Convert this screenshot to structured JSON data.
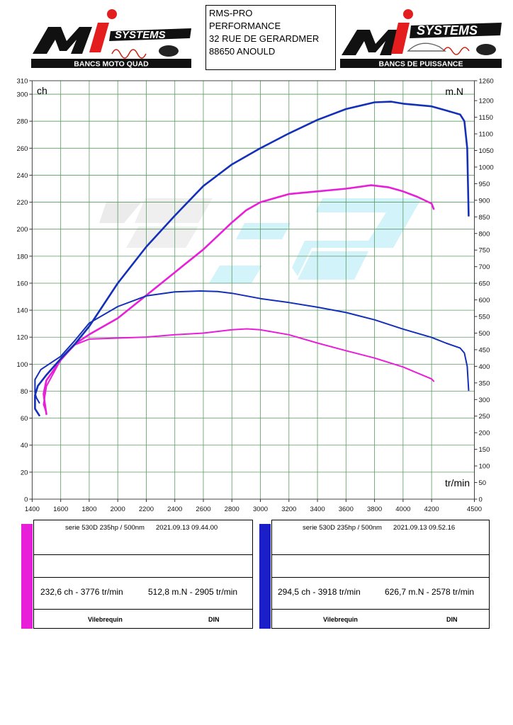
{
  "header": {
    "logo_left": {
      "brand": "MI SYSTEMS",
      "tagline": "BANCS MOTO QUAD"
    },
    "address_lines": [
      "RMS-PRO",
      "PERFORMANCE",
      "32 RUE DE GERARDMER",
      "88650 ANOULD"
    ],
    "logo_right": {
      "brand": "MI SYSTEMS",
      "tagline": "BANCS DE PUISSANCE"
    }
  },
  "chart_data": {
    "type": "line",
    "xlabel": "tr/min",
    "ylabel_left": "ch",
    "ylabel_right": "m.N",
    "xlim": [
      1400,
      4500
    ],
    "ylim_left": [
      0,
      310
    ],
    "ylim_right": [
      0,
      1260
    ],
    "x_ticks": [
      1400,
      1600,
      1800,
      2000,
      2200,
      2400,
      2600,
      2800,
      3000,
      3200,
      3400,
      3600,
      3800,
      4000,
      4200,
      4500
    ],
    "y_ticks_left": [
      0,
      20,
      40,
      60,
      80,
      100,
      120,
      140,
      160,
      180,
      200,
      220,
      240,
      260,
      280,
      300,
      310
    ],
    "y_ticks_right": [
      0,
      50,
      100,
      150,
      200,
      250,
      300,
      350,
      400,
      450,
      500,
      550,
      600,
      650,
      700,
      750,
      800,
      850,
      900,
      950,
      1000,
      1050,
      1100,
      1150,
      1200,
      1260
    ],
    "grid": true,
    "series": [
      {
        "color": "#e81fd8",
        "axis": "left",
        "quantity": "power",
        "points": [
          [
            1500,
            63
          ],
          [
            1490,
            70
          ],
          [
            1480,
            78
          ],
          [
            1500,
            88
          ],
          [
            1600,
            103
          ],
          [
            1700,
            115
          ],
          [
            1800,
            122
          ],
          [
            2000,
            134
          ],
          [
            2200,
            151
          ],
          [
            2400,
            168
          ],
          [
            2600,
            185
          ],
          [
            2800,
            205
          ],
          [
            2900,
            214
          ],
          [
            3000,
            220
          ],
          [
            3200,
            226
          ],
          [
            3400,
            228
          ],
          [
            3600,
            230
          ],
          [
            3776,
            232.6
          ],
          [
            3900,
            231
          ],
          [
            4000,
            228
          ],
          [
            4100,
            224
          ],
          [
            4200,
            219
          ],
          [
            4215,
            215
          ]
        ]
      },
      {
        "color": "#e81fd8",
        "axis": "right",
        "quantity": "torque",
        "points": [
          [
            1500,
            260
          ],
          [
            1480,
            285
          ],
          [
            1500,
            340
          ],
          [
            1600,
            420
          ],
          [
            1700,
            465
          ],
          [
            1800,
            482
          ],
          [
            2000,
            485
          ],
          [
            2200,
            488
          ],
          [
            2400,
            495
          ],
          [
            2600,
            500
          ],
          [
            2800,
            510
          ],
          [
            2905,
            512.8
          ],
          [
            3000,
            510
          ],
          [
            3200,
            495
          ],
          [
            3400,
            470
          ],
          [
            3600,
            447
          ],
          [
            3800,
            425
          ],
          [
            4000,
            398
          ],
          [
            4100,
            380
          ],
          [
            4200,
            362
          ],
          [
            4215,
            355
          ]
        ]
      },
      {
        "color": "#1530b8",
        "axis": "left",
        "quantity": "power",
        "points": [
          [
            1450,
            62
          ],
          [
            1420,
            67
          ],
          [
            1420,
            77
          ],
          [
            1440,
            84
          ],
          [
            1500,
            92
          ],
          [
            1600,
            104
          ],
          [
            1700,
            115
          ],
          [
            1800,
            128
          ],
          [
            2000,
            160
          ],
          [
            2200,
            187
          ],
          [
            2400,
            210
          ],
          [
            2600,
            232
          ],
          [
            2800,
            248
          ],
          [
            3000,
            260
          ],
          [
            3200,
            271
          ],
          [
            3400,
            281
          ],
          [
            3600,
            289
          ],
          [
            3800,
            294
          ],
          [
            3918,
            294.5
          ],
          [
            4000,
            293
          ],
          [
            4100,
            292
          ],
          [
            4200,
            291
          ],
          [
            4300,
            288
          ],
          [
            4400,
            285
          ],
          [
            4430,
            280
          ],
          [
            4450,
            260
          ],
          [
            4460,
            210
          ]
        ]
      },
      {
        "color": "#1530b8",
        "axis": "right",
        "quantity": "torque",
        "points": [
          [
            1450,
            290
          ],
          [
            1430,
            305
          ],
          [
            1420,
            320
          ],
          [
            1420,
            360
          ],
          [
            1460,
            390
          ],
          [
            1600,
            430
          ],
          [
            1700,
            478
          ],
          [
            1800,
            530
          ],
          [
            2000,
            580
          ],
          [
            2200,
            612
          ],
          [
            2400,
            624
          ],
          [
            2578,
            626.7
          ],
          [
            2700,
            625
          ],
          [
            2800,
            620
          ],
          [
            3000,
            604
          ],
          [
            3200,
            592
          ],
          [
            3400,
            578
          ],
          [
            3600,
            562
          ],
          [
            3800,
            540
          ],
          [
            4000,
            512
          ],
          [
            4200,
            487
          ],
          [
            4300,
            470
          ],
          [
            4400,
            455
          ],
          [
            4430,
            440
          ],
          [
            4450,
            400
          ],
          [
            4460,
            328
          ]
        ]
      }
    ]
  },
  "panels": [
    {
      "color": "#e81fd8",
      "header": "serie 530D 235hp / 500nm",
      "timestamp": "2021.09.13 09.44.00",
      "max_power": "232,6 ch - 3776 tr/min",
      "max_torque": "512,8 m.N - 2905 tr/min",
      "measure": "Vilebrequin",
      "standard": "DIN"
    },
    {
      "color": "#1a1fc8",
      "header": "serie 530D 235hp / 500nm",
      "timestamp": "2021.09.13 09.52.16",
      "max_power": "294,5 ch - 3918 tr/min",
      "max_torque": "626,7 m.N - 2578 tr/min",
      "measure": "Vilebrequin",
      "standard": "DIN"
    }
  ]
}
